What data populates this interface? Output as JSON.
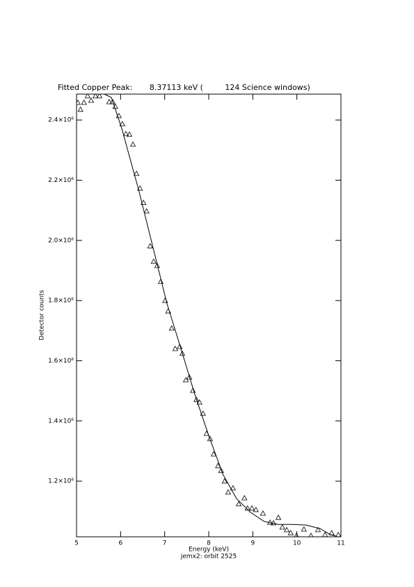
{
  "chart_data": {
    "type": "line",
    "title": "Fitted Copper Peak:       8.37113 keV (         124 Science windows)",
    "x_label": "Energy (keV)",
    "subtitle": "jemx2: orbit 2525",
    "y_label": "Detector counts",
    "xlim": [
      5,
      11
    ],
    "xticks": [
      5,
      6,
      7,
      8,
      9,
      10,
      11
    ],
    "ylim": [
      1015000,
      2486000
    ],
    "yticks": [
      {
        "value": 1200000,
        "label": "1.2×10⁶"
      },
      {
        "value": 1400000,
        "label": "1.4×10⁶"
      },
      {
        "value": 1600000,
        "label": "1.6×10⁶"
      },
      {
        "value": 1800000,
        "label": "1.8×10⁶"
      },
      {
        "value": 2000000,
        "label": "2.0×10⁶"
      },
      {
        "value": 2200000,
        "label": "2.2×10⁶"
      },
      {
        "value": 2400000,
        "label": "2.4×10⁶"
      }
    ],
    "color": "#000000",
    "series": [
      {
        "style": "markers",
        "marker": "triangle",
        "color": "#000000",
        "x": [
          5.03,
          5.09,
          5.17,
          5.25,
          5.33,
          5.43,
          5.52,
          5.74,
          5.82,
          5.88,
          5.96,
          6.04,
          6.12,
          6.2,
          6.28,
          6.36,
          6.44,
          6.52,
          6.59,
          6.67,
          6.75,
          6.83,
          6.91,
          7.01,
          7.08,
          7.16,
          7.24,
          7.34,
          7.4,
          7.48,
          7.56,
          7.64,
          7.72,
          7.79,
          7.87,
          7.95,
          8.03,
          8.11,
          8.21,
          8.28,
          8.36,
          8.44,
          8.55,
          8.68,
          8.81,
          8.88,
          8.98,
          9.07,
          9.23,
          9.39,
          9.47,
          9.58,
          9.67,
          9.77,
          9.86,
          9.99,
          10.16,
          10.32,
          10.48,
          10.64,
          10.79,
          10.94
        ],
        "values": [
          2458000,
          2435000,
          2458000,
          2480000,
          2465000,
          2480000,
          2480000,
          2460000,
          2460000,
          2445000,
          2414000,
          2387000,
          2354000,
          2352000,
          2319000,
          2222000,
          2173000,
          2125000,
          2097000,
          1981000,
          1930000,
          1916000,
          1863000,
          1800000,
          1765000,
          1708000,
          1640000,
          1647000,
          1624000,
          1536000,
          1545000,
          1501000,
          1471000,
          1462000,
          1425000,
          1358000,
          1341000,
          1290000,
          1251000,
          1235000,
          1200000,
          1163000,
          1177000,
          1124000,
          1144000,
          1110000,
          1110000,
          1105000,
          1093000,
          1063000,
          1061000,
          1079000,
          1047000,
          1038000,
          1028000,
          1019000,
          1040000,
          1019000,
          1038000,
          1022000,
          1028000,
          1022000
        ]
      },
      {
        "style": "line",
        "color": "#000000",
        "x": [
          5.63,
          5.79,
          6.03,
          6.42,
          7.05,
          7.37,
          7.68,
          8.0,
          8.32,
          8.63,
          8.95,
          9.26,
          9.58,
          9.89,
          10.21,
          10.53,
          10.76,
          10.9
        ],
        "values": [
          2486000,
          2475000,
          2370000,
          2162000,
          1791000,
          1640000,
          1490000,
          1351000,
          1223000,
          1142000,
          1096000,
          1066000,
          1056000,
          1056000,
          1054000,
          1042000,
          1022000,
          1017000
        ]
      }
    ]
  }
}
